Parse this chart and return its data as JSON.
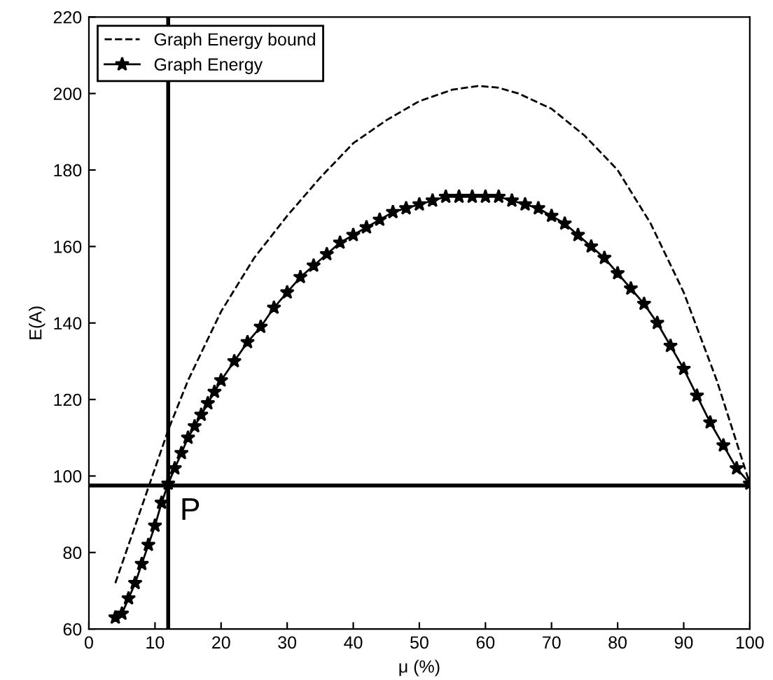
{
  "chart_data": {
    "type": "line",
    "xlabel": "μ (%)",
    "ylabel": "E(A)",
    "xlim": [
      0,
      100
    ],
    "ylim": [
      60,
      220
    ],
    "xticks": [
      0,
      10,
      20,
      30,
      40,
      50,
      60,
      70,
      80,
      90,
      100
    ],
    "yticks": [
      60,
      80,
      100,
      120,
      140,
      160,
      180,
      200,
      220
    ],
    "grid": false,
    "legend": "top left",
    "series": [
      {
        "name": "Graph Energy bound",
        "color": "#000000",
        "line_style": "dashed",
        "marker": "none",
        "x": [
          4,
          6,
          8,
          10,
          12,
          15,
          20,
          25,
          30,
          35,
          40,
          45,
          50,
          55,
          59,
          62,
          65,
          70,
          75,
          80,
          85,
          90,
          95,
          100
        ],
        "values": [
          72,
          82,
          92,
          102,
          112,
          125,
          143,
          157,
          168,
          178,
          187,
          193,
          198,
          201,
          202,
          201.5,
          200,
          196,
          189,
          180,
          166,
          148,
          125,
          98
        ]
      },
      {
        "name": "Graph Energy",
        "color": "#000000",
        "line_style": "solid",
        "marker": "star",
        "x": [
          4,
          5,
          6,
          7,
          8,
          9,
          10,
          11,
          12,
          13,
          14,
          15,
          16,
          17,
          18,
          19,
          20,
          22,
          24,
          26,
          28,
          30,
          32,
          34,
          36,
          38,
          40,
          42,
          44,
          46,
          48,
          50,
          52,
          54,
          56,
          58,
          60,
          62,
          64,
          66,
          68,
          70,
          72,
          74,
          76,
          78,
          80,
          82,
          84,
          86,
          88,
          90,
          92,
          94,
          96,
          98,
          100
        ],
        "values": [
          63,
          64,
          68,
          72,
          77,
          82,
          87,
          93,
          98,
          102,
          106,
          110,
          113,
          116,
          119,
          122,
          125,
          130,
          135,
          139,
          144,
          148,
          152,
          155,
          158,
          161,
          163,
          165,
          167,
          169,
          170,
          171,
          172,
          173,
          173,
          173,
          173,
          173,
          172,
          171,
          170,
          168,
          166,
          163,
          160,
          157,
          153,
          149,
          145,
          140,
          134,
          128,
          121,
          114,
          108,
          102,
          98
        ]
      }
    ],
    "ref_lines": [
      {
        "axis": "x",
        "value": 12,
        "color": "#000000",
        "line_style": "solid"
      },
      {
        "axis": "y",
        "value": 97.5,
        "color": "#000000",
        "line_style": "solid"
      }
    ],
    "annotations": [
      {
        "text": "P",
        "x": 12,
        "y": 97.5
      }
    ]
  }
}
